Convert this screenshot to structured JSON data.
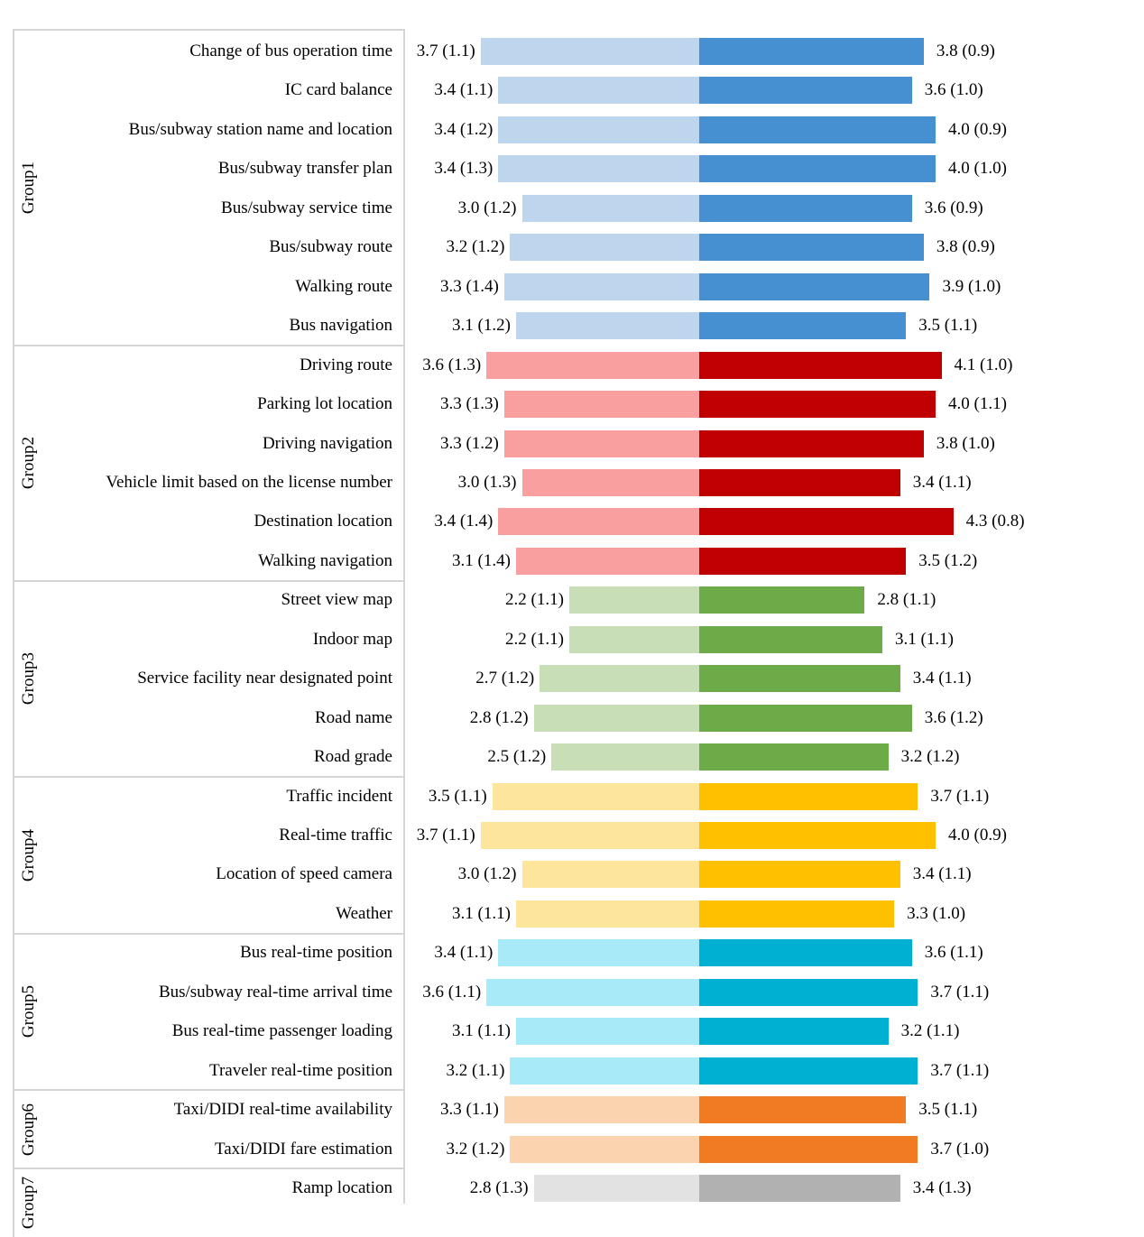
{
  "chart_data": {
    "type": "bar",
    "orientation": "horizontal",
    "variant": "diverging paired bars: light bar extends left of center, dark bar extends right of center",
    "value_format": "mean (sd)",
    "legend": "none visible",
    "grid": "off",
    "groups": [
      {
        "name": "Group1",
        "light_color": "#BDD6EE",
        "dark_color": "#4690D1",
        "items": [
          {
            "label": "Change of bus operation time",
            "left_text": "3.7 (1.1)",
            "right_text": "3.8 (0.9)",
            "left_mean": 3.7,
            "left_sd": 1.1,
            "right_mean": 3.8,
            "right_sd": 0.9
          },
          {
            "label": "IC card balance",
            "left_text": "3.4 (1.1)",
            "right_text": "3.6 (1.0)",
            "left_mean": 3.4,
            "left_sd": 1.1,
            "right_mean": 3.6,
            "right_sd": 1.0
          },
          {
            "label": "Bus/subway station name and location",
            "left_text": "3.4 (1.2)",
            "right_text": "4.0 (0.9)",
            "left_mean": 3.4,
            "left_sd": 1.2,
            "right_mean": 4.0,
            "right_sd": 0.9
          },
          {
            "label": "Bus/subway transfer plan",
            "left_text": "3.4 (1.3)",
            "right_text": "4.0 (1.0)",
            "left_mean": 3.4,
            "left_sd": 1.3,
            "right_mean": 4.0,
            "right_sd": 1.0
          },
          {
            "label": "Bus/subway service time",
            "left_text": "3.0 (1.2)",
            "right_text": "3.6 (0.9)",
            "left_mean": 3.0,
            "left_sd": 1.2,
            "right_mean": 3.6,
            "right_sd": 0.9
          },
          {
            "label": "Bus/subway route",
            "left_text": "3.2 (1.2)",
            "right_text": "3.8 (0.9)",
            "left_mean": 3.2,
            "left_sd": 1.2,
            "right_mean": 3.8,
            "right_sd": 0.9
          },
          {
            "label": "Walking route",
            "left_text": "3.3 (1.4)",
            "right_text": "3.9 (1.0)",
            "left_mean": 3.3,
            "left_sd": 1.4,
            "right_mean": 3.9,
            "right_sd": 1.0
          },
          {
            "label": "Bus navigation",
            "left_text": "3.1 (1.2)",
            "right_text": "3.5 (1.1)",
            "left_mean": 3.1,
            "left_sd": 1.2,
            "right_mean": 3.5,
            "right_sd": 1.1
          }
        ]
      },
      {
        "name": "Group2",
        "light_color": "#F99F9F",
        "dark_color": "#C00000",
        "items": [
          {
            "label": "Driving route",
            "left_text": "3.6 (1.3)",
            "right_text": "4.1 (1.0)",
            "left_mean": 3.6,
            "left_sd": 1.3,
            "right_mean": 4.1,
            "right_sd": 1.0
          },
          {
            "label": "Parking lot location",
            "left_text": "3.3 (1.3)",
            "right_text": "4.0 (1.1)",
            "left_mean": 3.3,
            "left_sd": 1.3,
            "right_mean": 4.0,
            "right_sd": 1.1
          },
          {
            "label": "Driving navigation",
            "left_text": "3.3 (1.2)",
            "right_text": "3.8 (1.0)",
            "left_mean": 3.3,
            "left_sd": 1.2,
            "right_mean": 3.8,
            "right_sd": 1.0
          },
          {
            "label": "Vehicle limit based on the license number",
            "left_text": "3.0 (1.3)",
            "right_text": "3.4 (1.1)",
            "left_mean": 3.0,
            "left_sd": 1.3,
            "right_mean": 3.4,
            "right_sd": 1.1
          },
          {
            "label": "Destination location",
            "left_text": "3.4 (1.4)",
            "right_text": "4.3 (0.8)",
            "left_mean": 3.4,
            "left_sd": 1.4,
            "right_mean": 4.3,
            "right_sd": 0.8
          },
          {
            "label": "Walking navigation",
            "left_text": "3.1 (1.4)",
            "right_text": "3.5 (1.2)",
            "left_mean": 3.1,
            "left_sd": 1.4,
            "right_mean": 3.5,
            "right_sd": 1.2
          }
        ]
      },
      {
        "name": "Group3",
        "light_color": "#C8DEB7",
        "dark_color": "#6CAB47",
        "items": [
          {
            "label": "Street view map",
            "left_text": "2.2 (1.1)",
            "right_text": "2.8 (1.1)",
            "left_mean": 2.2,
            "left_sd": 1.1,
            "right_mean": 2.8,
            "right_sd": 1.1
          },
          {
            "label": "Indoor map",
            "left_text": "2.2 (1.1)",
            "right_text": "3.1 (1.1)",
            "left_mean": 2.2,
            "left_sd": 1.1,
            "right_mean": 3.1,
            "right_sd": 1.1
          },
          {
            "label": "Service facility near designated point",
            "left_text": "2.7 (1.2)",
            "right_text": "3.4 (1.1)",
            "left_mean": 2.7,
            "left_sd": 1.2,
            "right_mean": 3.4,
            "right_sd": 1.1
          },
          {
            "label": "Road name",
            "left_text": "2.8 (1.2)",
            "right_text": "3.6 (1.2)",
            "left_mean": 2.8,
            "left_sd": 1.2,
            "right_mean": 3.6,
            "right_sd": 1.2
          },
          {
            "label": "Road grade",
            "left_text": "2.5 (1.2)",
            "right_text": "3.2 (1.2)",
            "left_mean": 2.5,
            "left_sd": 1.2,
            "right_mean": 3.2,
            "right_sd": 1.2
          }
        ]
      },
      {
        "name": "Group4",
        "light_color": "#FDE59B",
        "dark_color": "#FFC000",
        "items": [
          {
            "label": "Traffic incident",
            "left_text": "3.5 (1.1)",
            "right_text": "3.7 (1.1)",
            "left_mean": 3.5,
            "left_sd": 1.1,
            "right_mean": 3.7,
            "right_sd": 1.1
          },
          {
            "label": "Real-time traffic",
            "left_text": "3.7 (1.1)",
            "right_text": "4.0 (0.9)",
            "left_mean": 3.7,
            "left_sd": 1.1,
            "right_mean": 4.0,
            "right_sd": 0.9
          },
          {
            "label": "Location of speed camera",
            "left_text": "3.0 (1.2)",
            "right_text": "3.4 (1.1)",
            "left_mean": 3.0,
            "left_sd": 1.2,
            "right_mean": 3.4,
            "right_sd": 1.1
          },
          {
            "label": "Weather",
            "left_text": "3.1 (1.1)",
            "right_text": "3.3 (1.0)",
            "left_mean": 3.1,
            "left_sd": 1.1,
            "right_mean": 3.3,
            "right_sd": 1.0
          }
        ]
      },
      {
        "name": "Group5",
        "light_color": "#A8EAF8",
        "dark_color": "#00B0D2",
        "items": [
          {
            "label": "Bus real-time position",
            "left_text": "3.4 (1.1)",
            "right_text": "3.6 (1.1)",
            "left_mean": 3.4,
            "left_sd": 1.1,
            "right_mean": 3.6,
            "right_sd": 1.1
          },
          {
            "label": "Bus/subway real-time arrival time",
            "left_text": "3.6 (1.1)",
            "right_text": "3.7 (1.1)",
            "left_mean": 3.6,
            "left_sd": 1.1,
            "right_mean": 3.7,
            "right_sd": 1.1
          },
          {
            "label": "Bus real-time passenger loading",
            "left_text": "3.1 (1.1)",
            "right_text": "3.2 (1.1)",
            "left_mean": 3.1,
            "left_sd": 1.1,
            "right_mean": 3.2,
            "right_sd": 1.1
          },
          {
            "label": "Traveler real-time position",
            "left_text": "3.2 (1.1)",
            "right_text": "3.7 (1.1)",
            "left_mean": 3.2,
            "left_sd": 1.1,
            "right_mean": 3.7,
            "right_sd": 1.1
          }
        ]
      },
      {
        "name": "Group6",
        "light_color": "#FBD3AE",
        "dark_color": "#F07B23",
        "items": [
          {
            "label": "Taxi/DIDI real-time availability",
            "left_text": "3.3 (1.1)",
            "right_text": "3.5 (1.1)",
            "left_mean": 3.3,
            "left_sd": 1.1,
            "right_mean": 3.5,
            "right_sd": 1.1
          },
          {
            "label": "Taxi/DIDI fare estimation",
            "left_text": "3.2 (1.2)",
            "right_text": "3.7 (1.0)",
            "left_mean": 3.2,
            "left_sd": 1.2,
            "right_mean": 3.7,
            "right_sd": 1.0
          }
        ]
      },
      {
        "name": "Group7",
        "light_color": "#E2E2E2",
        "dark_color": "#B1B1B1",
        "items": [
          {
            "label": "Ramp location",
            "left_text": "2.8 (1.3)",
            "right_text": "3.4 (1.3)",
            "left_mean": 2.8,
            "left_sd": 1.3,
            "right_mean": 3.4,
            "right_sd": 1.3
          }
        ]
      }
    ]
  }
}
